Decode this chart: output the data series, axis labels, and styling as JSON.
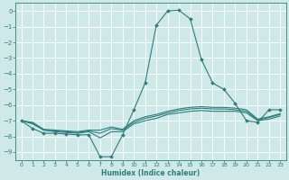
{
  "xlabel": "Humidex (Indice chaleur)",
  "xlim": [
    -0.5,
    23.5
  ],
  "ylim": [
    -9.5,
    0.5
  ],
  "yticks": [
    0,
    -1,
    -2,
    -3,
    -4,
    -5,
    -6,
    -7,
    -8,
    -9
  ],
  "xticks": [
    0,
    1,
    2,
    3,
    4,
    5,
    6,
    7,
    8,
    9,
    10,
    11,
    12,
    13,
    14,
    15,
    16,
    17,
    18,
    19,
    20,
    21,
    22,
    23
  ],
  "bg_color": "#cfe8e8",
  "line_color": "#2e7d7d",
  "grid_color": "#ffffff",
  "lines": [
    {
      "x": [
        0,
        1,
        2,
        3,
        4,
        5,
        6,
        7,
        8,
        9,
        10,
        11,
        12,
        13,
        14,
        15,
        16,
        17,
        18,
        19,
        20,
        21,
        22,
        23
      ],
      "y": [
        -7.0,
        -7.5,
        -7.8,
        -7.8,
        -7.85,
        -7.9,
        -7.9,
        -9.3,
        -9.3,
        -7.9,
        -6.3,
        -4.6,
        -0.9,
        0.0,
        0.05,
        -0.5,
        -3.1,
        -4.6,
        -5.0,
        -5.9,
        -7.0,
        -7.1,
        -6.3,
        -6.3
      ],
      "markers": true
    },
    {
      "x": [
        0,
        1,
        2,
        3,
        4,
        5,
        6,
        7,
        8,
        9,
        10,
        11,
        12,
        13,
        14,
        15,
        16,
        17,
        18,
        19,
        20,
        21,
        22,
        23
      ],
      "y": [
        -7.0,
        -7.2,
        -7.6,
        -7.7,
        -7.75,
        -7.8,
        -7.7,
        -8.1,
        -7.7,
        -7.7,
        -7.2,
        -7.0,
        -6.85,
        -6.6,
        -6.5,
        -6.4,
        -6.35,
        -6.4,
        -6.4,
        -6.4,
        -6.5,
        -7.0,
        -6.9,
        -6.7
      ],
      "markers": false
    },
    {
      "x": [
        0,
        1,
        2,
        3,
        4,
        5,
        6,
        7,
        8,
        9,
        10,
        11,
        12,
        13,
        14,
        15,
        16,
        17,
        18,
        19,
        20,
        21,
        22,
        23
      ],
      "y": [
        -7.0,
        -7.15,
        -7.6,
        -7.65,
        -7.7,
        -7.75,
        -7.65,
        -7.8,
        -7.5,
        -7.6,
        -7.1,
        -6.85,
        -6.7,
        -6.5,
        -6.35,
        -6.25,
        -6.2,
        -6.25,
        -6.25,
        -6.3,
        -6.4,
        -6.95,
        -6.8,
        -6.6
      ],
      "markers": false
    },
    {
      "x": [
        0,
        1,
        2,
        3,
        4,
        5,
        6,
        7,
        8,
        9,
        10,
        11,
        12,
        13,
        14,
        15,
        16,
        17,
        18,
        19,
        20,
        21,
        22,
        23
      ],
      "y": [
        -7.0,
        -7.1,
        -7.55,
        -7.6,
        -7.65,
        -7.7,
        -7.6,
        -7.6,
        -7.4,
        -7.55,
        -7.0,
        -6.75,
        -6.6,
        -6.4,
        -6.25,
        -6.15,
        -6.1,
        -6.15,
        -6.15,
        -6.2,
        -6.3,
        -6.9,
        -6.75,
        -6.55
      ],
      "markers": false
    }
  ]
}
